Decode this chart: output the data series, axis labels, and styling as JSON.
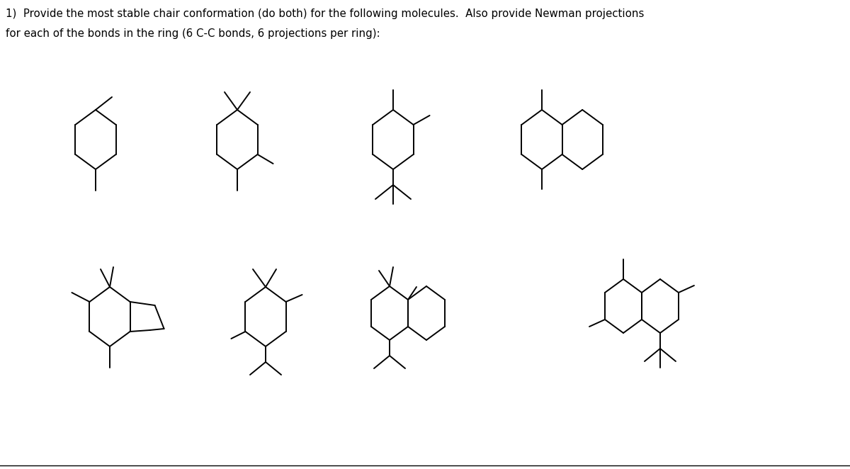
{
  "title_line1": "1)  Provide the most stable chair conformation (do both) for the following molecules.  Also provide Newman projections",
  "title_line2": "for each of the bonds in the ring (6 C-C bonds, 6 projections per ring):",
  "bg_color": "#ffffff",
  "line_color": "#000000",
  "line_width": 1.4,
  "fig_width": 12.0,
  "fig_height": 6.62
}
